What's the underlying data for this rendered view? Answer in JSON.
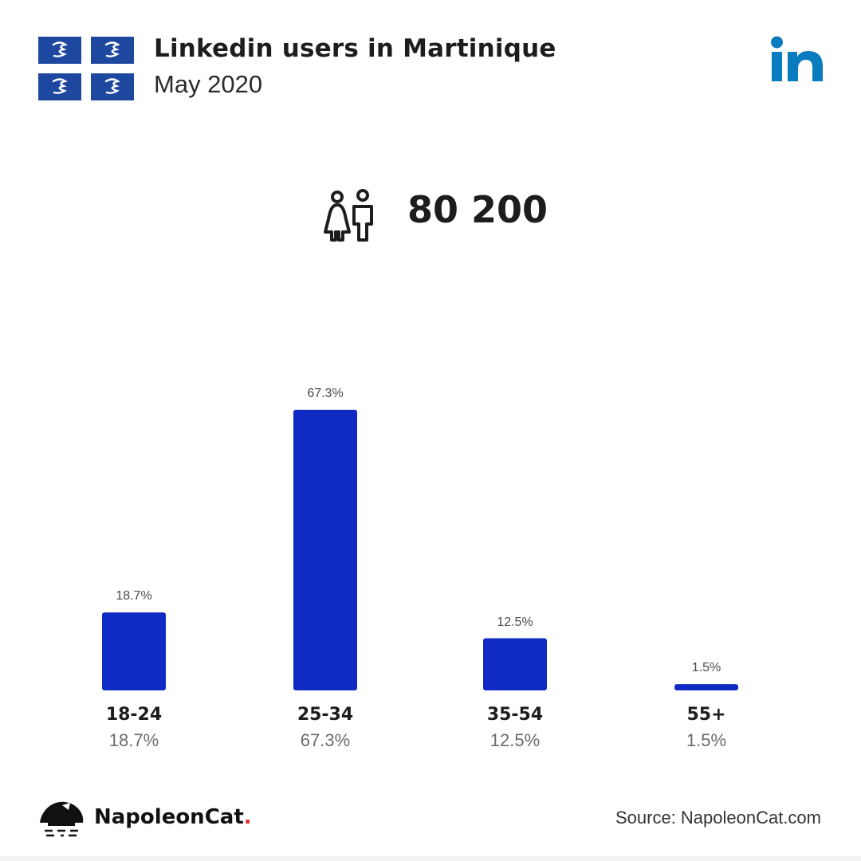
{
  "header": {
    "title": "Linkedin users in Martinique",
    "subtitle": "May 2020",
    "flag_color": "#1e47a0",
    "flag_icon": "martinique-snake-flag-icon",
    "brand_icon": "linkedin-logo-icon",
    "brand_color": "#0a7bbf"
  },
  "summary": {
    "icon": "users-icon",
    "total": "80 200"
  },
  "chart_data": {
    "type": "bar",
    "title": "",
    "xlabel": "",
    "ylabel": "",
    "ylim": [
      0,
      67.3
    ],
    "grid": false,
    "categories": [
      "18-24",
      "25-34",
      "35-54",
      "55+"
    ],
    "values": [
      18.7,
      67.3,
      12.5,
      1.5
    ],
    "value_labels": [
      "18.7%",
      "67.3%",
      "12.5%",
      "1.5%"
    ],
    "bar_color": "#0f2bc4"
  },
  "footer": {
    "brand_name": "NapoleonCat",
    "brand_dot": ".",
    "brand_icon": "napoleoncat-logo-icon",
    "source": "Source: NapoleonCat.com"
  }
}
